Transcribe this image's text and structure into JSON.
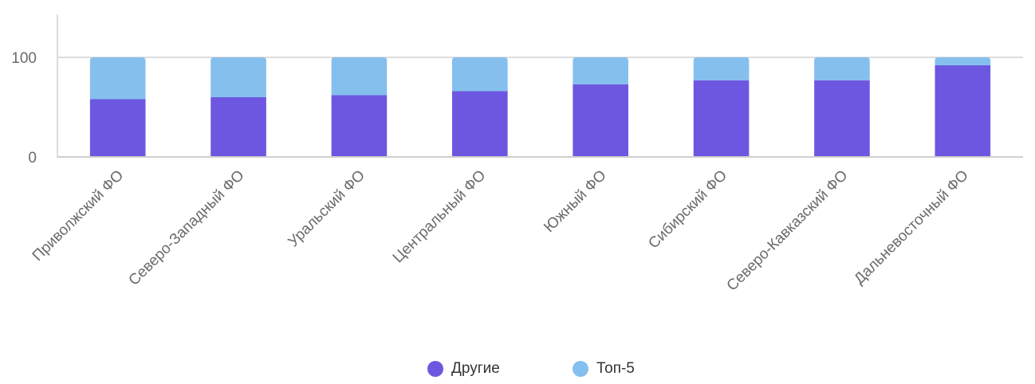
{
  "chart_data": {
    "type": "bar",
    "stacked": true,
    "categories": [
      "Приволжский ФО",
      "Северо-Западный ФО",
      "Уральский ФО",
      "Центральный ФО",
      "Южный ФО",
      "Сибирский ФО",
      "Северо-Кавказский ФО",
      "Дальневосточный ФО"
    ],
    "series": [
      {
        "name": "Другие",
        "color": "#6e57e0",
        "values": [
          58,
          60,
          62,
          66,
          73,
          77,
          77,
          92
        ]
      },
      {
        "name": "Топ-5",
        "color": "#85bfee",
        "values": [
          42,
          40,
          38,
          34,
          27,
          23,
          23,
          8
        ]
      }
    ],
    "yticks": [
      0,
      100
    ],
    "ylim": [
      0,
      143
    ],
    "grid": true,
    "legend_position": "bottom"
  }
}
